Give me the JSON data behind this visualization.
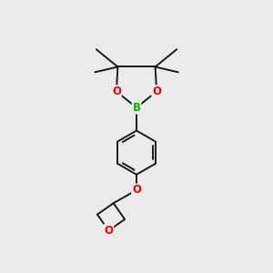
{
  "background_color": "#ebebeb",
  "bond_color": "#1a1a1a",
  "bond_width": 1.4,
  "atom_colors": {
    "B": "#00bb00",
    "O": "#ee0000",
    "C": "#1a1a1a"
  },
  "fig_width": 3.0,
  "fig_height": 3.0,
  "dpi": 100,
  "scale": 10.0
}
